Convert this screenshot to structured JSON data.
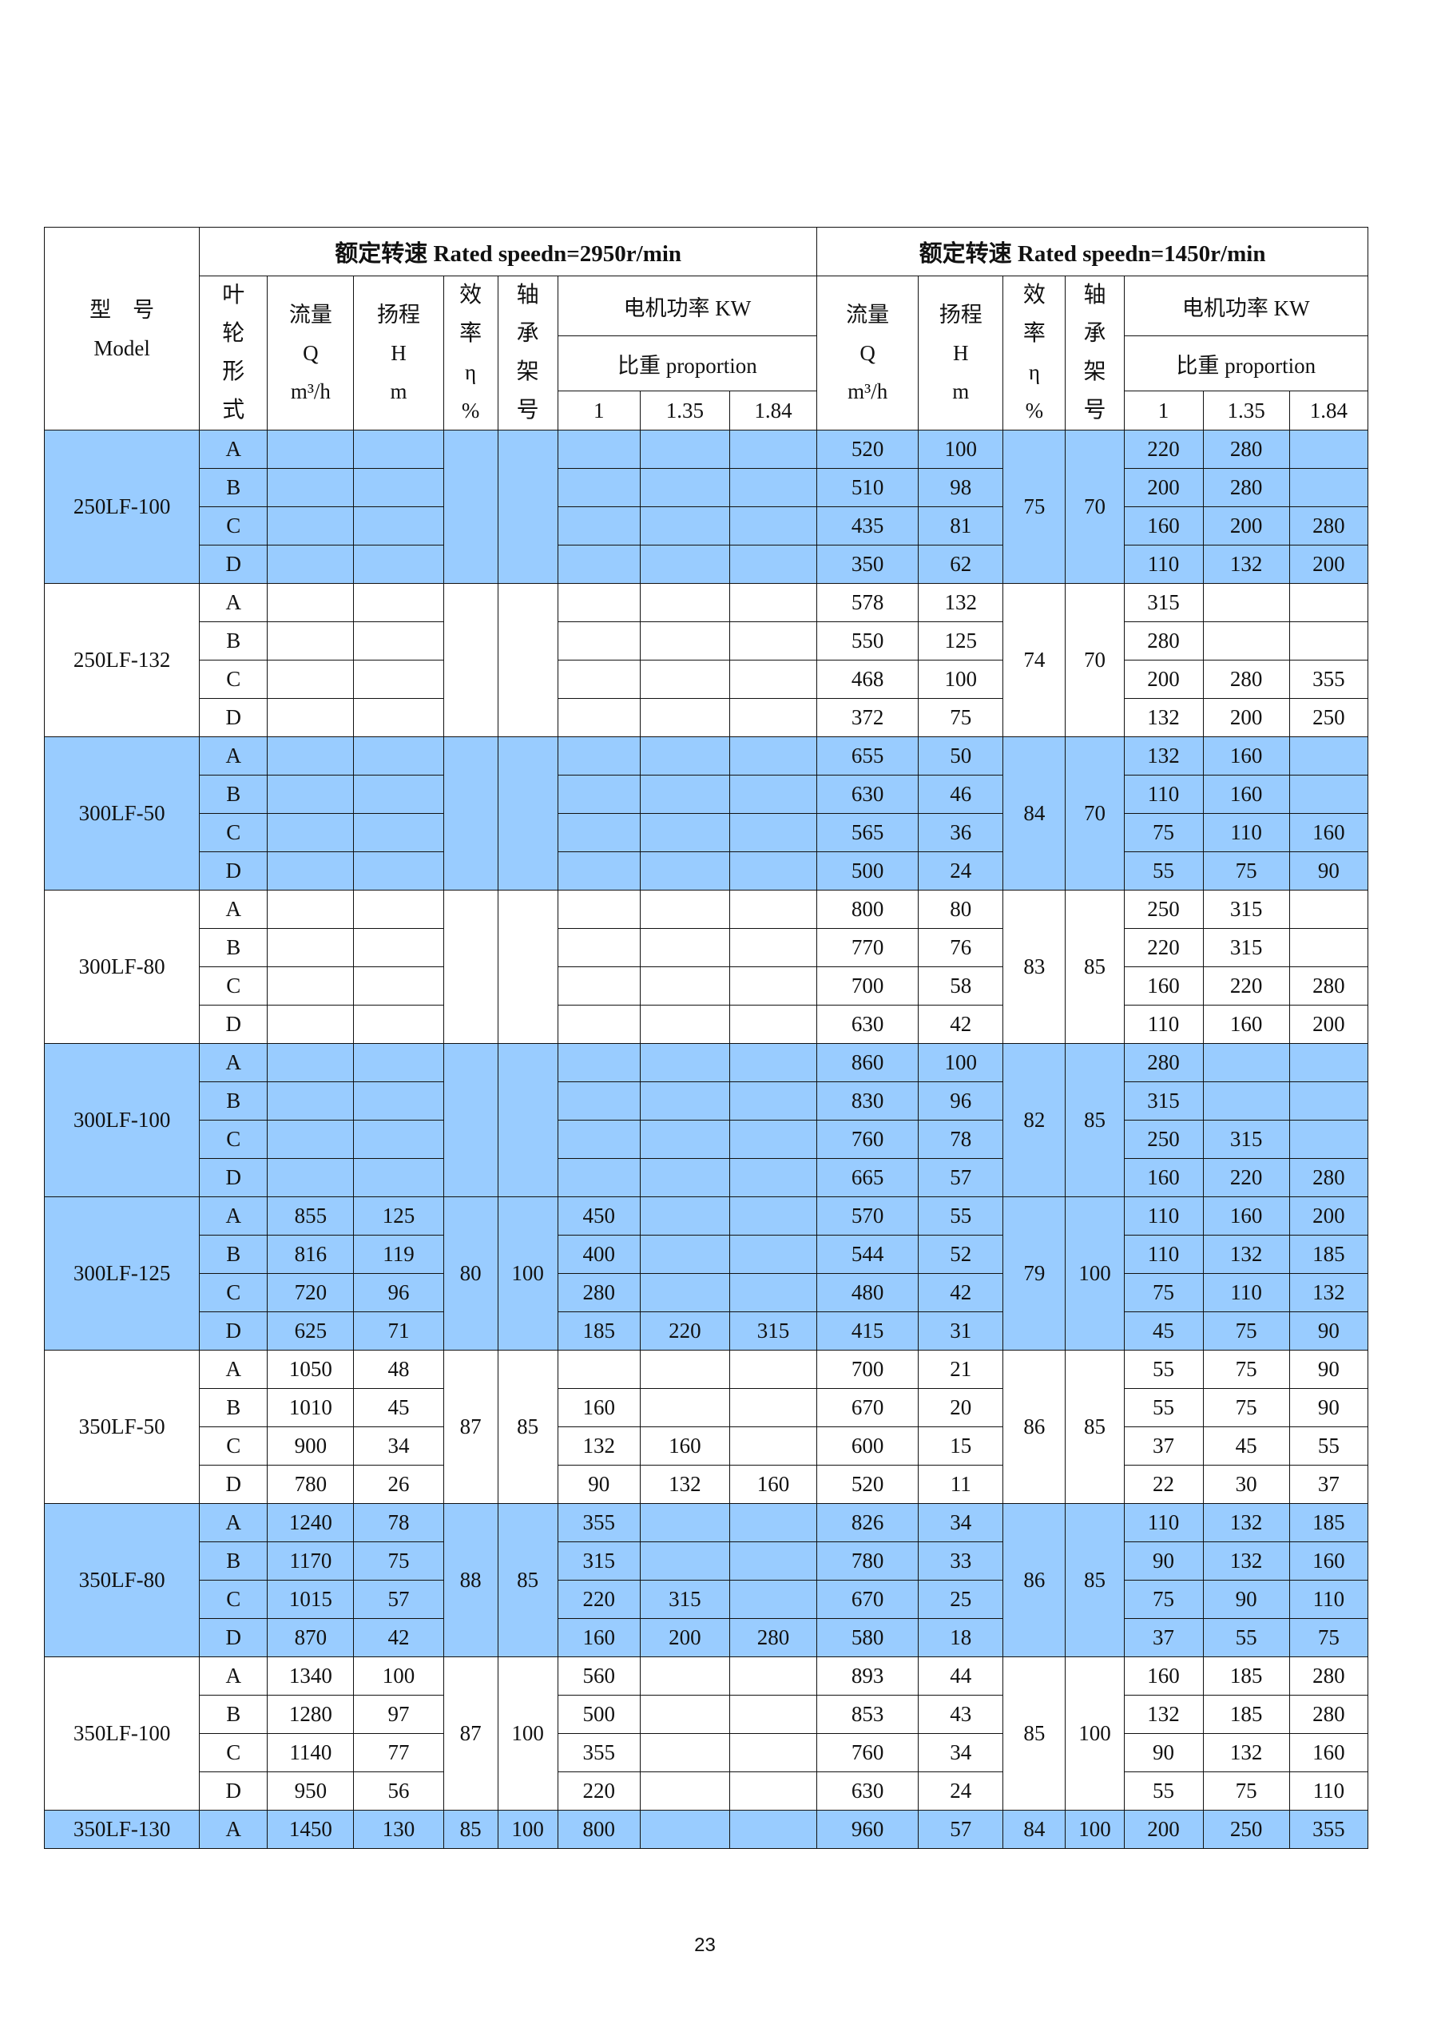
{
  "header": {
    "model_cn": "型　号",
    "model_en": "Model",
    "speed_2950": "额定转速 Rated speedn=2950r/min",
    "speed_1450": "额定转速 Rated speedn=1450r/min",
    "impeller": "叶轮形式",
    "flow": "流量",
    "flow_sym": "Q",
    "flow_unit": "m³/h",
    "head": "扬程",
    "head_sym": "H",
    "head_unit": "m",
    "eff": "效率",
    "eff_sym": "η",
    "eff_unit": "%",
    "bearing": "轴承架号",
    "motor_power": "电机功率 KW",
    "proportion": "比重 proportion",
    "sg": [
      "1",
      "1.35",
      "1.84"
    ]
  },
  "colors": {
    "shaded": "#99ccff",
    "border": "#111111"
  },
  "models": [
    {
      "model": "250LF-100",
      "shaded": true,
      "eff2950": "",
      "bearing2950": "",
      "eff1450": "75",
      "bearing1450": "70",
      "rows": [
        {
          "imp": "A",
          "q1": "",
          "h1": "",
          "p1": [
            "",
            "",
            ""
          ],
          "q2": "520",
          "h2": "100",
          "p2": [
            "220",
            "280",
            ""
          ]
        },
        {
          "imp": "B",
          "q1": "",
          "h1": "",
          "p1": [
            "",
            "",
            ""
          ],
          "q2": "510",
          "h2": "98",
          "p2": [
            "200",
            "280",
            ""
          ]
        },
        {
          "imp": "C",
          "q1": "",
          "h1": "",
          "p1": [
            "",
            "",
            ""
          ],
          "q2": "435",
          "h2": "81",
          "p2": [
            "160",
            "200",
            "280"
          ]
        },
        {
          "imp": "D",
          "q1": "",
          "h1": "",
          "p1": [
            "",
            "",
            ""
          ],
          "q2": "350",
          "h2": "62",
          "p2": [
            "110",
            "132",
            "200"
          ]
        }
      ]
    },
    {
      "model": "250LF-132",
      "shaded": false,
      "eff2950": "",
      "bearing2950": "",
      "eff1450": "74",
      "bearing1450": "70",
      "rows": [
        {
          "imp": "A",
          "q1": "",
          "h1": "",
          "p1": [
            "",
            "",
            ""
          ],
          "q2": "578",
          "h2": "132",
          "p2": [
            "315",
            "",
            ""
          ]
        },
        {
          "imp": "B",
          "q1": "",
          "h1": "",
          "p1": [
            "",
            "",
            ""
          ],
          "q2": "550",
          "h2": "125",
          "p2": [
            "280",
            "",
            ""
          ]
        },
        {
          "imp": "C",
          "q1": "",
          "h1": "",
          "p1": [
            "",
            "",
            ""
          ],
          "q2": "468",
          "h2": "100",
          "p2": [
            "200",
            "280",
            "355"
          ]
        },
        {
          "imp": "D",
          "q1": "",
          "h1": "",
          "p1": [
            "",
            "",
            ""
          ],
          "q2": "372",
          "h2": "75",
          "p2": [
            "132",
            "200",
            "250"
          ]
        }
      ]
    },
    {
      "model": "300LF-50",
      "shaded": true,
      "eff2950": "",
      "bearing2950": "",
      "eff1450": "84",
      "bearing1450": "70",
      "rows": [
        {
          "imp": "A",
          "q1": "",
          "h1": "",
          "p1": [
            "",
            "",
            ""
          ],
          "q2": "655",
          "h2": "50",
          "p2": [
            "132",
            "160",
            ""
          ]
        },
        {
          "imp": "B",
          "q1": "",
          "h1": "",
          "p1": [
            "",
            "",
            ""
          ],
          "q2": "630",
          "h2": "46",
          "p2": [
            "110",
            "160",
            ""
          ]
        },
        {
          "imp": "C",
          "q1": "",
          "h1": "",
          "p1": [
            "",
            "",
            ""
          ],
          "q2": "565",
          "h2": "36",
          "p2": [
            "75",
            "110",
            "160"
          ]
        },
        {
          "imp": "D",
          "q1": "",
          "h1": "",
          "p1": [
            "",
            "",
            ""
          ],
          "q2": "500",
          "h2": "24",
          "p2": [
            "55",
            "75",
            "90"
          ]
        }
      ]
    },
    {
      "model": "300LF-80",
      "shaded": false,
      "eff2950": "",
      "bearing2950": "",
      "eff1450": "83",
      "bearing1450": "85",
      "rows": [
        {
          "imp": "A",
          "q1": "",
          "h1": "",
          "p1": [
            "",
            "",
            ""
          ],
          "q2": "800",
          "h2": "80",
          "p2": [
            "250",
            "315",
            ""
          ]
        },
        {
          "imp": "B",
          "q1": "",
          "h1": "",
          "p1": [
            "",
            "",
            ""
          ],
          "q2": "770",
          "h2": "76",
          "p2": [
            "220",
            "315",
            ""
          ]
        },
        {
          "imp": "C",
          "q1": "",
          "h1": "",
          "p1": [
            "",
            "",
            ""
          ],
          "q2": "700",
          "h2": "58",
          "p2": [
            "160",
            "220",
            "280"
          ]
        },
        {
          "imp": "D",
          "q1": "",
          "h1": "",
          "p1": [
            "",
            "",
            ""
          ],
          "q2": "630",
          "h2": "42",
          "p2": [
            "110",
            "160",
            "200"
          ]
        }
      ]
    },
    {
      "model": "300LF-100",
      "shaded": true,
      "eff2950": "",
      "bearing2950": "",
      "eff1450": "82",
      "bearing1450": "85",
      "rows": [
        {
          "imp": "A",
          "q1": "",
          "h1": "",
          "p1": [
            "",
            "",
            ""
          ],
          "q2": "860",
          "h2": "100",
          "p2": [
            "280",
            "",
            ""
          ]
        },
        {
          "imp": "B",
          "q1": "",
          "h1": "",
          "p1": [
            "",
            "",
            ""
          ],
          "q2": "830",
          "h2": "96",
          "p2": [
            "315",
            "",
            ""
          ]
        },
        {
          "imp": "C",
          "q1": "",
          "h1": "",
          "p1": [
            "",
            "",
            ""
          ],
          "q2": "760",
          "h2": "78",
          "p2": [
            "250",
            "315",
            ""
          ]
        },
        {
          "imp": "D",
          "q1": "",
          "h1": "",
          "p1": [
            "",
            "",
            ""
          ],
          "q2": "665",
          "h2": "57",
          "p2": [
            "160",
            "220",
            "280"
          ]
        }
      ]
    },
    {
      "model": "300LF-125",
      "shaded": true,
      "eff2950": "80",
      "bearing2950": "100",
      "eff1450": "79",
      "bearing1450": "100",
      "rows": [
        {
          "imp": "A",
          "q1": "855",
          "h1": "125",
          "p1": [
            "450",
            "",
            ""
          ],
          "q2": "570",
          "h2": "55",
          "p2": [
            "110",
            "160",
            "200"
          ]
        },
        {
          "imp": "B",
          "q1": "816",
          "h1": "119",
          "p1": [
            "400",
            "",
            ""
          ],
          "q2": "544",
          "h2": "52",
          "p2": [
            "110",
            "132",
            "185"
          ]
        },
        {
          "imp": "C",
          "q1": "720",
          "h1": "96",
          "p1": [
            "280",
            "",
            ""
          ],
          "q2": "480",
          "h2": "42",
          "p2": [
            "75",
            "110",
            "132"
          ]
        },
        {
          "imp": "D",
          "q1": "625",
          "h1": "71",
          "p1": [
            "185",
            "220",
            "315"
          ],
          "q2": "415",
          "h2": "31",
          "p2": [
            "45",
            "75",
            "90"
          ]
        }
      ]
    },
    {
      "model": "350LF-50",
      "shaded": false,
      "eff2950": "87",
      "bearing2950": "85",
      "eff1450": "86",
      "bearing1450": "85",
      "rows": [
        {
          "imp": "A",
          "q1": "1050",
          "h1": "48",
          "p1": [
            "",
            "",
            ""
          ],
          "q2": "700",
          "h2": "21",
          "p2": [
            "55",
            "75",
            "90"
          ]
        },
        {
          "imp": "B",
          "q1": "1010",
          "h1": "45",
          "p1": [
            "160",
            "",
            ""
          ],
          "q2": "670",
          "h2": "20",
          "p2": [
            "55",
            "75",
            "90"
          ]
        },
        {
          "imp": "C",
          "q1": "900",
          "h1": "34",
          "p1": [
            "132",
            "160",
            ""
          ],
          "q2": "600",
          "h2": "15",
          "p2": [
            "37",
            "45",
            "55"
          ]
        },
        {
          "imp": "D",
          "q1": "780",
          "h1": "26",
          "p1": [
            "90",
            "132",
            "160"
          ],
          "q2": "520",
          "h2": "11",
          "p2": [
            "22",
            "30",
            "37"
          ]
        }
      ]
    },
    {
      "model": "350LF-80",
      "shaded": true,
      "eff2950": "88",
      "bearing2950": "85",
      "eff1450": "86",
      "bearing1450": "85",
      "rows": [
        {
          "imp": "A",
          "q1": "1240",
          "h1": "78",
          "p1": [
            "355",
            "",
            ""
          ],
          "q2": "826",
          "h2": "34",
          "p2": [
            "110",
            "132",
            "185"
          ]
        },
        {
          "imp": "B",
          "q1": "1170",
          "h1": "75",
          "p1": [
            "315",
            "",
            ""
          ],
          "q2": "780",
          "h2": "33",
          "p2": [
            "90",
            "132",
            "160"
          ]
        },
        {
          "imp": "C",
          "q1": "1015",
          "h1": "57",
          "p1": [
            "220",
            "315",
            ""
          ],
          "q2": "670",
          "h2": "25",
          "p2": [
            "75",
            "90",
            "110"
          ]
        },
        {
          "imp": "D",
          "q1": "870",
          "h1": "42",
          "p1": [
            "160",
            "200",
            "280"
          ],
          "q2": "580",
          "h2": "18",
          "p2": [
            "37",
            "55",
            "75"
          ]
        }
      ]
    },
    {
      "model": "350LF-100",
      "shaded": false,
      "eff2950": "87",
      "bearing2950": "100",
      "eff1450": "85",
      "bearing1450": "100",
      "rows": [
        {
          "imp": "A",
          "q1": "1340",
          "h1": "100",
          "p1": [
            "560",
            "",
            ""
          ],
          "q2": "893",
          "h2": "44",
          "p2": [
            "160",
            "185",
            "280"
          ]
        },
        {
          "imp": "B",
          "q1": "1280",
          "h1": "97",
          "p1": [
            "500",
            "",
            ""
          ],
          "q2": "853",
          "h2": "43",
          "p2": [
            "132",
            "185",
            "280"
          ]
        },
        {
          "imp": "C",
          "q1": "1140",
          "h1": "77",
          "p1": [
            "355",
            "",
            ""
          ],
          "q2": "760",
          "h2": "34",
          "p2": [
            "90",
            "132",
            "160"
          ]
        },
        {
          "imp": "D",
          "q1": "950",
          "h1": "56",
          "p1": [
            "220",
            "",
            ""
          ],
          "q2": "630",
          "h2": "24",
          "p2": [
            "55",
            "75",
            "110"
          ]
        }
      ]
    },
    {
      "model": "350LF-130",
      "shaded": true,
      "eff2950": "85",
      "bearing2950": "100",
      "eff1450": "84",
      "bearing1450": "100",
      "rows": [
        {
          "imp": "A",
          "q1": "1450",
          "h1": "130",
          "p1": [
            "800",
            "",
            ""
          ],
          "q2": "960",
          "h2": "57",
          "p2": [
            "200",
            "250",
            "355"
          ]
        }
      ]
    }
  ],
  "page_number": "23"
}
